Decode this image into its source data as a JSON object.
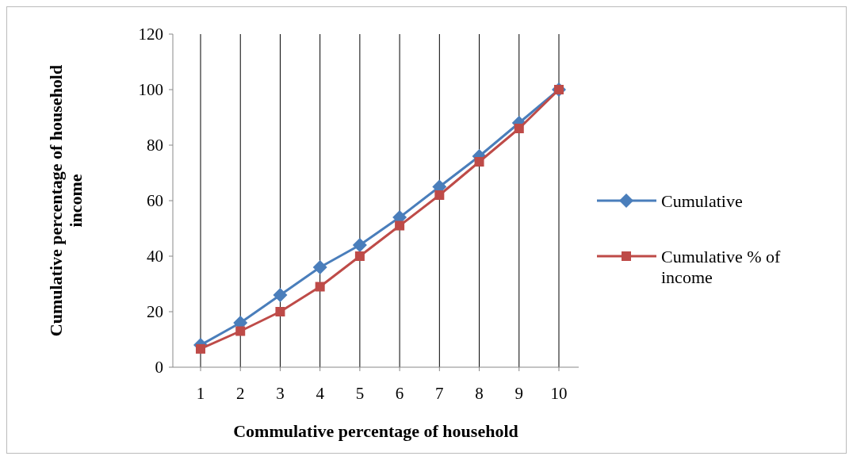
{
  "chart_data": {
    "type": "line",
    "xlabel": "Commulative percentage of household",
    "ylabel": "Cumulative percentage of household income",
    "categories": [
      "1",
      "2",
      "3",
      "4",
      "5",
      "6",
      "7",
      "8",
      "9",
      "10"
    ],
    "series": [
      {
        "name": "Cumulative",
        "color": "#4a7ebb",
        "marker": "diamond",
        "values": [
          8,
          16,
          26,
          36,
          44,
          54,
          65,
          76,
          88,
          100
        ]
      },
      {
        "name": "Cumulative % of income",
        "color": "#be4b48",
        "marker": "square",
        "values": [
          6.6,
          13,
          20,
          29,
          40,
          51,
          62,
          74,
          86,
          100
        ]
      }
    ],
    "ylim": [
      0,
      120
    ],
    "yticks": [
      0,
      20,
      40,
      60,
      80,
      100,
      120
    ],
    "grid": "x",
    "legend": "right"
  }
}
